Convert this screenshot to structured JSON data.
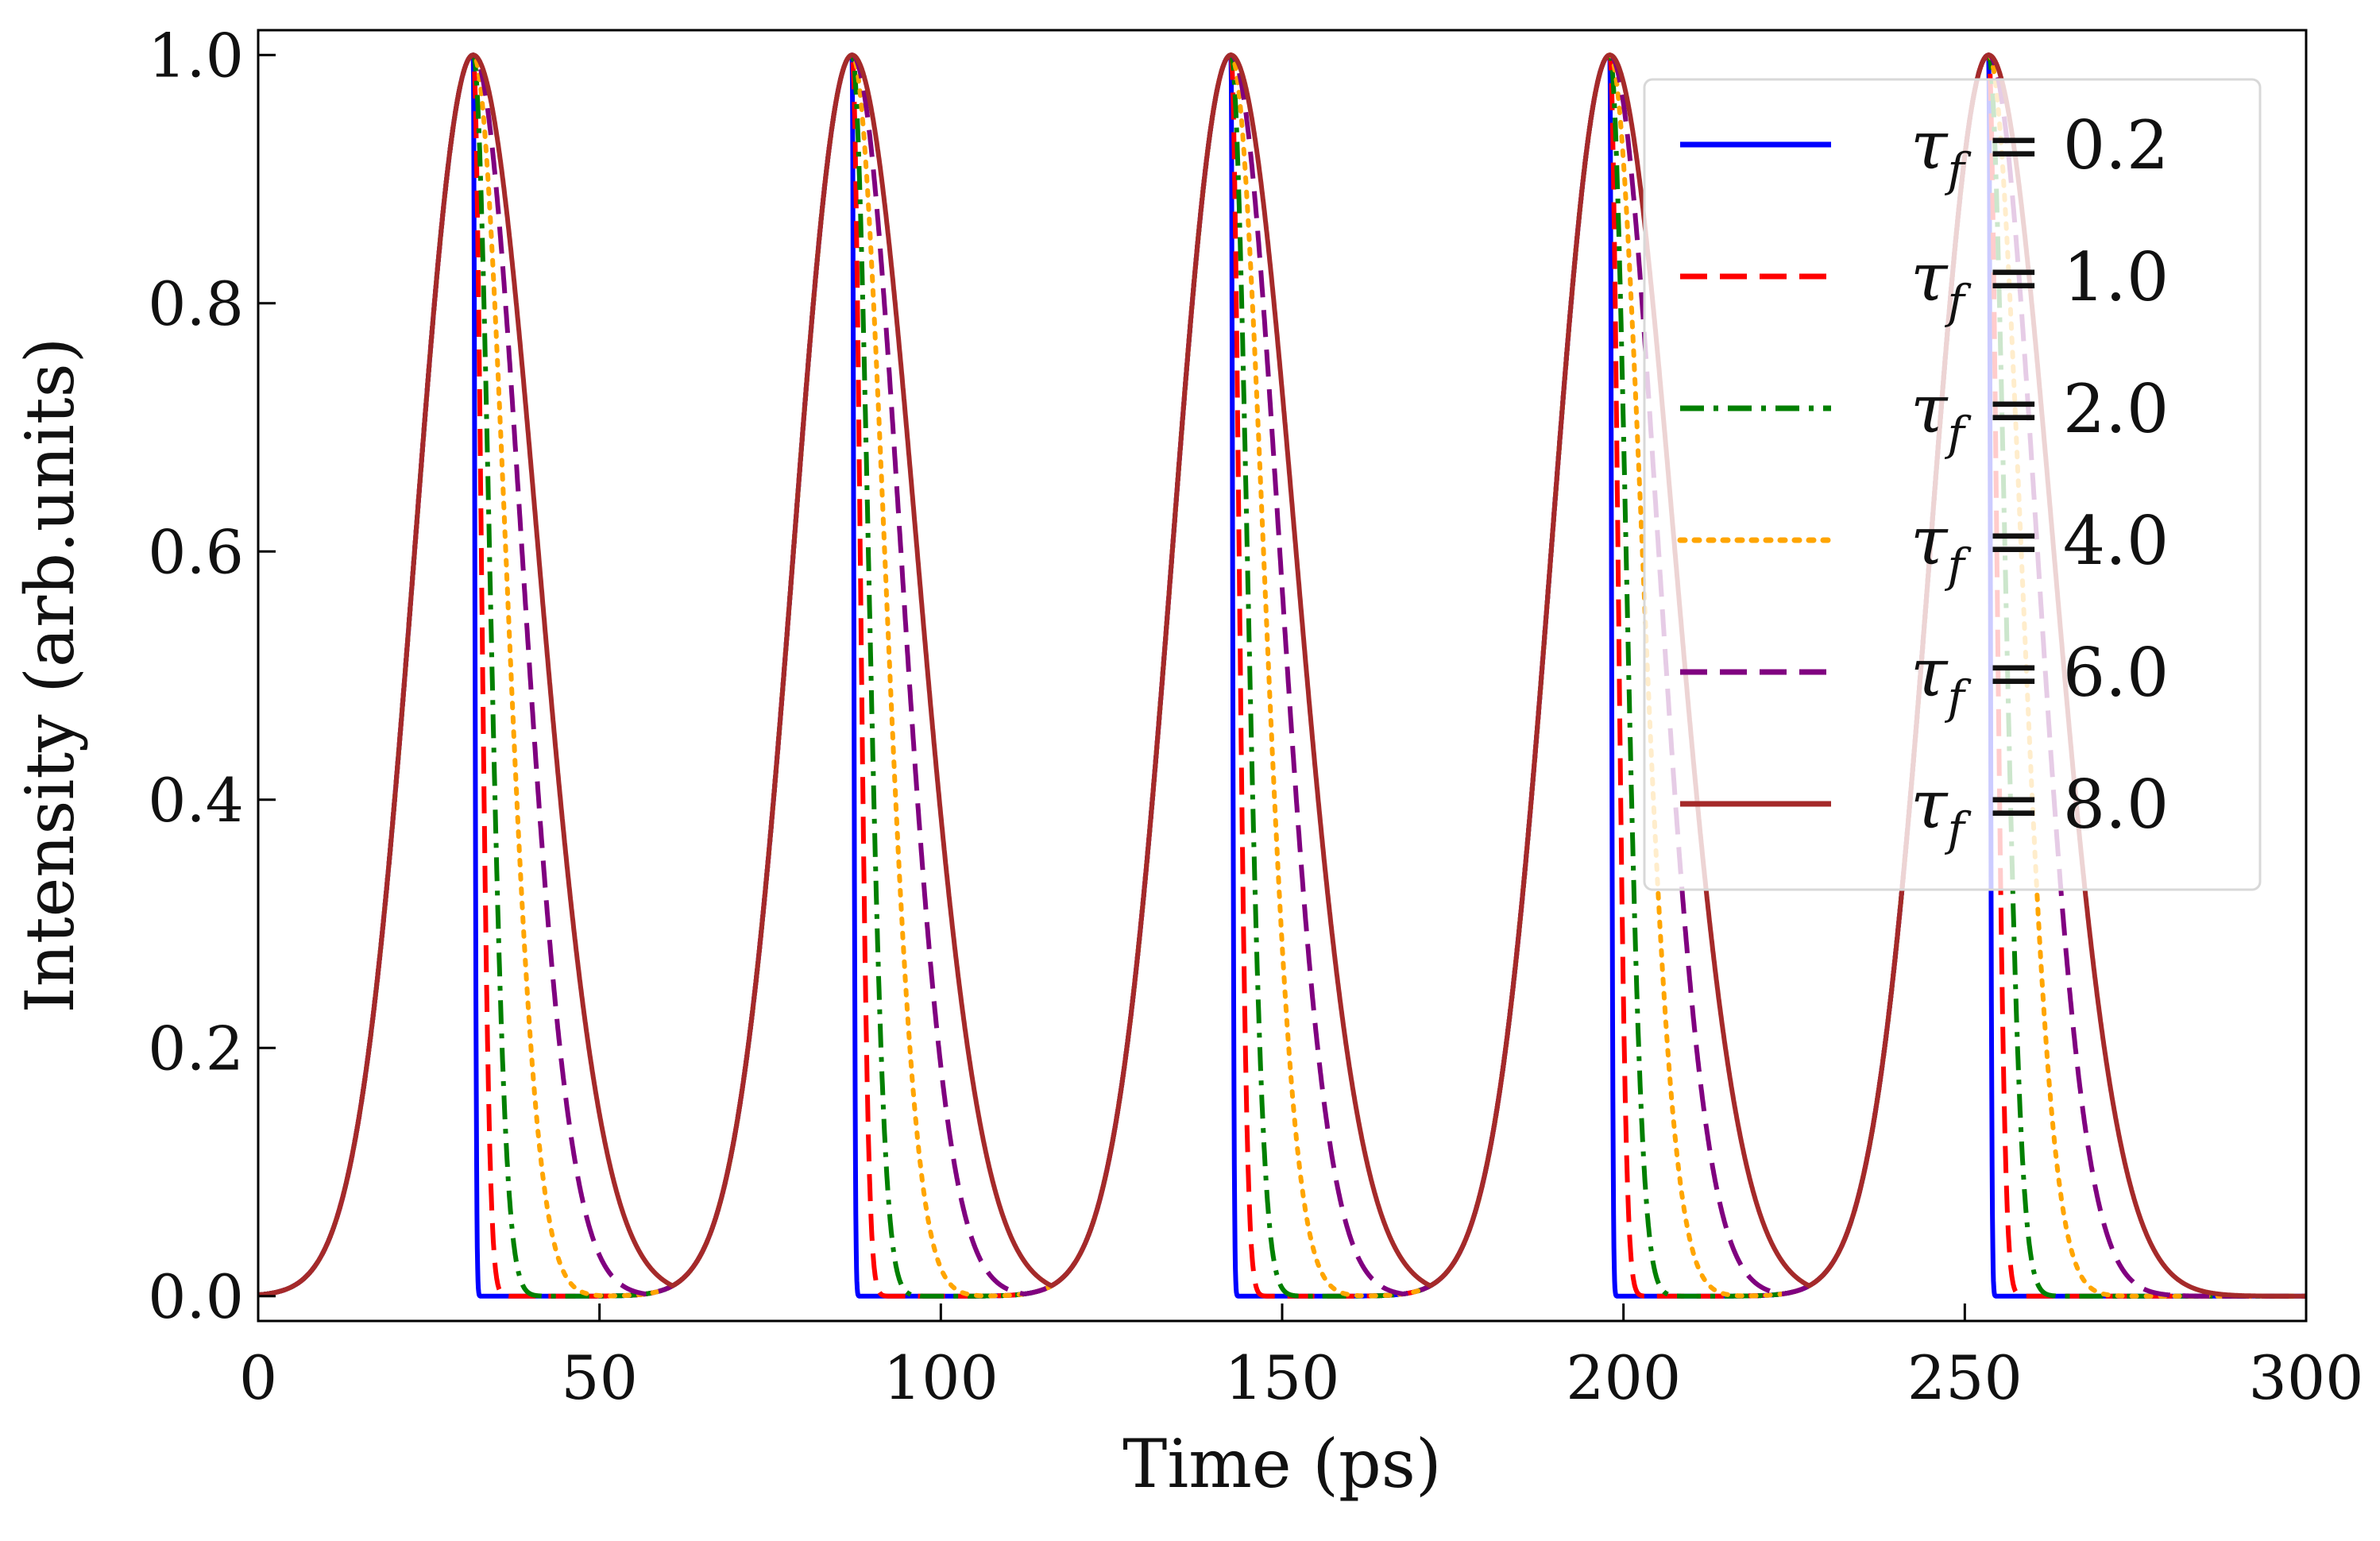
{
  "chart_data": {
    "type": "line",
    "title": "",
    "xlabel": "Time (ps)",
    "ylabel": "Intensity (arb.units)",
    "xlim": [
      0,
      300
    ],
    "ylim": [
      -0.02,
      1.02
    ],
    "xticks": [
      0,
      50,
      100,
      150,
      200,
      250,
      300
    ],
    "xtick_labels": [
      "0",
      "50",
      "100",
      "150",
      "200",
      "250",
      "300"
    ],
    "yticks": [
      0.0,
      0.2,
      0.4,
      0.6,
      0.8,
      1.0
    ],
    "ytick_labels": [
      "0.0",
      "0.2",
      "0.4",
      "0.6",
      "0.8",
      "1.0"
    ],
    "grid": false,
    "legend_position": "top-right",
    "pulse": {
      "peak_times": [
        31.5,
        87,
        142.5,
        198,
        253.5
      ],
      "peak_value": 1.0,
      "rise_gaussian_sigma": 8.5,
      "fall_model": "half-gaussian with sigma = tau_f * 1.18"
    },
    "series": [
      {
        "name": "τf = 0.2",
        "tau_symbol": "τ",
        "tau_sub": "f",
        "eq": " = 0.2",
        "tau_f": 0.2,
        "color": "#0000ff",
        "style": "solid"
      },
      {
        "name": "τf = 1.0",
        "tau_symbol": "τ",
        "tau_sub": "f",
        "eq": " = 1.0",
        "tau_f": 1.0,
        "color": "#ff0000",
        "style": "dashed"
      },
      {
        "name": "τf = 2.0",
        "tau_symbol": "τ",
        "tau_sub": "f",
        "eq": " = 2.0",
        "tau_f": 2.0,
        "color": "#008000",
        "style": "dashdot"
      },
      {
        "name": "τf = 4.0",
        "tau_symbol": "τ",
        "tau_sub": "f",
        "eq": " = 4.0",
        "tau_f": 4.0,
        "color": "#ffa500",
        "style": "dotted"
      },
      {
        "name": "τf = 6.0",
        "tau_symbol": "τ",
        "tau_sub": "f",
        "eq": " = 6.0",
        "tau_f": 6.0,
        "color": "#800080",
        "style": "dashed"
      },
      {
        "name": "τf = 8.0",
        "tau_symbol": "τ",
        "tau_sub": "f",
        "eq": " = 8.0",
        "tau_f": 8.0,
        "color": "#a52a2a",
        "style": "solid"
      }
    ]
  }
}
